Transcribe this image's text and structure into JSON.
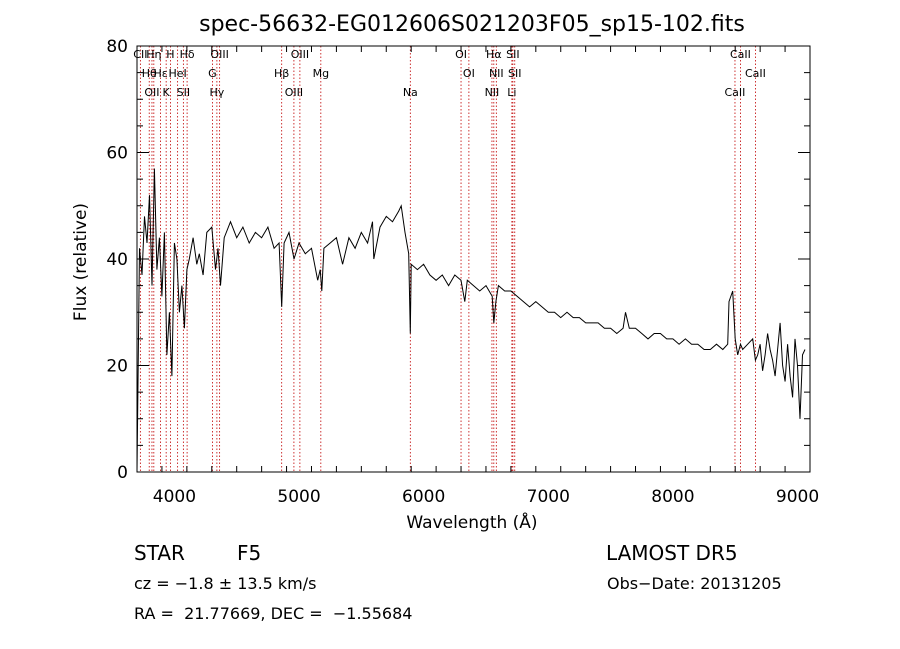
{
  "chart_data": {
    "type": "line",
    "title": "spec-56632-EG012606S021203F05_sp15-102.fits",
    "xlabel": "Wavelength (Å)",
    "ylabel": "Flux (relative)",
    "xlim": [
      3700,
      9100
    ],
    "ylim": [
      0,
      80
    ],
    "xticks": [
      4000,
      5000,
      6000,
      7000,
      8000,
      9000
    ],
    "yticks": [
      0,
      20,
      40,
      60,
      80
    ],
    "grid": false,
    "series": [
      {
        "x": [
          3700,
          3720,
          3740,
          3760,
          3780,
          3800,
          3820,
          3840,
          3860,
          3880,
          3900,
          3920,
          3940,
          3960,
          3980,
          4000,
          4020,
          4040,
          4060,
          4080,
          4100,
          4120,
          4150,
          4180,
          4200,
          4230,
          4260,
          4300,
          4330,
          4350,
          4370,
          4400,
          4450,
          4500,
          4550,
          4600,
          4650,
          4700,
          4750,
          4800,
          4840,
          4861,
          4880,
          4920,
          4960,
          5000,
          5050,
          5100,
          5150,
          5170,
          5183,
          5200,
          5250,
          5300,
          5350,
          5400,
          5450,
          5500,
          5550,
          5590,
          5600,
          5650,
          5700,
          5750,
          5800,
          5820,
          5850,
          5880,
          5893,
          5900,
          5950,
          6000,
          6050,
          6100,
          6150,
          6200,
          6250,
          6300,
          6330,
          6350,
          6400,
          6450,
          6500,
          6550,
          6563,
          6580,
          6600,
          6650,
          6700,
          6750,
          6800,
          6850,
          6900,
          6950,
          7000,
          7050,
          7100,
          7150,
          7200,
          7250,
          7300,
          7350,
          7400,
          7450,
          7500,
          7550,
          7600,
          7620,
          7650,
          7700,
          7750,
          7800,
          7850,
          7900,
          7950,
          8000,
          8050,
          8100,
          8150,
          8200,
          8250,
          8300,
          8350,
          8400,
          8440,
          8450,
          8480,
          8500,
          8520,
          8542,
          8560,
          8600,
          8640,
          8662,
          8680,
          8700,
          8720,
          8740,
          8760,
          8780,
          8800,
          8820,
          8840,
          8860,
          8880,
          8900,
          8920,
          8940,
          8960,
          8980,
          9000,
          9020,
          9040,
          9060
        ],
        "y": [
          0,
          42,
          37,
          48,
          43,
          52,
          35,
          57,
          38,
          44,
          33,
          45,
          22,
          30,
          18,
          43,
          40,
          30,
          35,
          27,
          38,
          40,
          44,
          39,
          41,
          37,
          45,
          46,
          38,
          42,
          35,
          44,
          47,
          44,
          46,
          43,
          45,
          44,
          46,
          42,
          43,
          31,
          43,
          45,
          40,
          43,
          41,
          42,
          36,
          38,
          34,
          42,
          43,
          44,
          39,
          44,
          42,
          45,
          43,
          47,
          40,
          46,
          48,
          47,
          49,
          50,
          45,
          41,
          26,
          39,
          38,
          39,
          37,
          36,
          37,
          35,
          37,
          36,
          32,
          36,
          35,
          34,
          35,
          33,
          28,
          32,
          35,
          34,
          34,
          33,
          32,
          31,
          32,
          31,
          30,
          30,
          29,
          30,
          29,
          29,
          28,
          28,
          28,
          27,
          27,
          26,
          27,
          30,
          27,
          27,
          26,
          25,
          26,
          26,
          25,
          25,
          24,
          25,
          24,
          24,
          23,
          23,
          24,
          23,
          24,
          32,
          34,
          25,
          22,
          24,
          23,
          24,
          25,
          21,
          22,
          24,
          19,
          22,
          26,
          23,
          21,
          18,
          23,
          28,
          20,
          17,
          24,
          18,
          14,
          25,
          20,
          10,
          22,
          23
        ]
      }
    ],
    "lines": [
      {
        "label": "CII",
        "x": 3727
      },
      {
        "label": "Hθ",
        "x": 3798
      },
      {
        "label": "OII",
        "x": 3820
      },
      {
        "label": "Hη",
        "x": 3835
      },
      {
        "label": "Hε",
        "x": 3889
      },
      {
        "label": "K",
        "x": 3934
      },
      {
        "label": "H",
        "x": 3968
      },
      {
        "label": "HeI",
        "x": 4026
      },
      {
        "label": "SII",
        "x": 4072
      },
      {
        "label": "Hδ",
        "x": 4102
      },
      {
        "label": "G",
        "x": 4305
      },
      {
        "label": "Hγ",
        "x": 4341
      },
      {
        "label": "OIII",
        "x": 4363
      },
      {
        "label": "Hβ",
        "x": 4861
      },
      {
        "label": "OIII",
        "x": 4959
      },
      {
        "label": "OIII",
        "x": 5007
      },
      {
        "label": "Mg",
        "x": 5175
      },
      {
        "label": "Na",
        "x": 5893
      },
      {
        "label": "OI",
        "x": 6300
      },
      {
        "label": "OI",
        "x": 6363
      },
      {
        "label": "NII",
        "x": 6548
      },
      {
        "label": "Hα",
        "x": 6563
      },
      {
        "label": "NII",
        "x": 6583
      },
      {
        "label": "Li",
        "x": 6708
      },
      {
        "label": "SII",
        "x": 6716
      },
      {
        "label": "SII",
        "x": 6731
      },
      {
        "label": "CaII",
        "x": 8498
      },
      {
        "label": "CaII",
        "x": 8542
      },
      {
        "label": "CaII",
        "x": 8662
      }
    ]
  },
  "info": {
    "class": "STAR",
    "subclass": "F5",
    "survey": "LAMOST DR5",
    "cz": "cz = −1.8 ± 13.5 km/s",
    "obs_date": "Obs−Date: 20131205",
    "coords": "RA =  21.77669, DEC =  −1.55684"
  }
}
